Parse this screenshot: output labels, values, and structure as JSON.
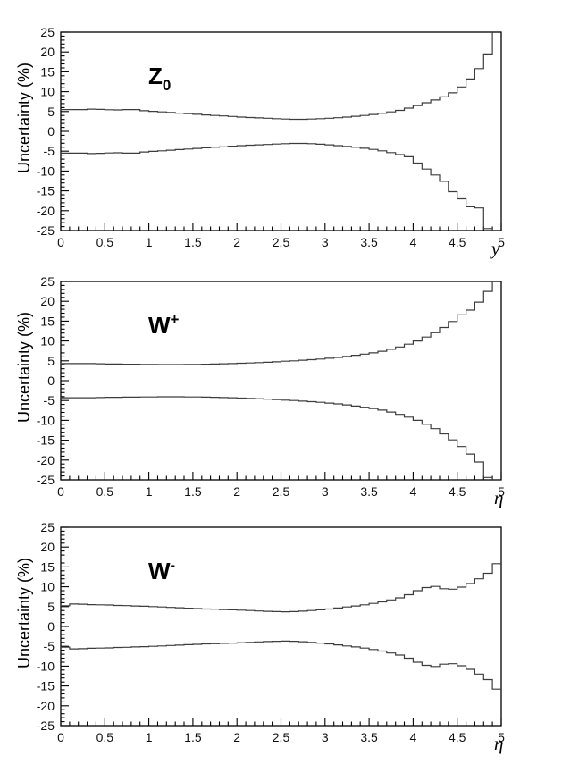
{
  "figure": {
    "background": "#ffffff",
    "curve_color": "#3c3c3c",
    "axis_color": "#000000",
    "text_color": "#000000"
  },
  "panels": [
    {
      "name": "Z0",
      "title_main": "Z",
      "title_script": "0",
      "script_type": "sub"
    },
    {
      "name": "W-plus",
      "title_main": "W",
      "title_script": "+",
      "script_type": "sup"
    },
    {
      "name": "W-minus",
      "title_main": "W",
      "title_script": "-",
      "script_type": "sup"
    }
  ],
  "chart_data": [
    {
      "type": "line",
      "style": "step-histogram",
      "title": "Z0",
      "xlabel": "y",
      "ylabel": "Uncertainty (%)",
      "xlim": [
        0,
        5
      ],
      "ylim": [
        -25,
        25
      ],
      "grid": false,
      "legend": "none",
      "bin_width": 0.1,
      "x_ticks": {
        "major_step": 0.5,
        "minor_step": 0.1,
        "values": [
          0,
          0.5,
          1,
          1.5,
          2,
          2.5,
          3,
          3.5,
          4,
          4.5,
          5
        ],
        "labels": [
          "0",
          "0.5",
          "1",
          "1.5",
          "2",
          "2.5",
          "3",
          "3.5",
          "4",
          "4.5",
          "5"
        ]
      },
      "y_ticks": {
        "major_step": 5,
        "minor_step": 1,
        "values": [
          25,
          20,
          15,
          10,
          5,
          0,
          -5,
          -10,
          -15,
          -20,
          -25
        ],
        "labels": [
          "25",
          "20",
          "15",
          "10",
          "5",
          "0",
          "-5",
          "-10",
          "-15",
          "-20",
          "-25"
        ]
      },
      "series": [
        {
          "name": "upper-uncertainty",
          "values": [
            5.5,
            5.5,
            5.5,
            5.6,
            5.55,
            5.45,
            5.4,
            5.5,
            5.5,
            5.2,
            5.05,
            4.9,
            4.75,
            4.6,
            4.45,
            4.3,
            4.15,
            4.0,
            3.9,
            3.75,
            3.6,
            3.5,
            3.4,
            3.3,
            3.2,
            3.1,
            3.05,
            3.05,
            3.1,
            3.2,
            3.3,
            3.45,
            3.6,
            3.8,
            4.0,
            4.25,
            4.55,
            4.9,
            5.3,
            5.85,
            6.5,
            7.2,
            7.9,
            8.7,
            9.7,
            11.2,
            13.2,
            15.8,
            19.5,
            25.5
          ]
        },
        {
          "name": "lower-uncertainty",
          "values": [
            -5.5,
            -5.5,
            -5.5,
            -5.6,
            -5.55,
            -5.45,
            -5.4,
            -5.5,
            -5.5,
            -5.2,
            -5.05,
            -4.9,
            -4.75,
            -4.6,
            -4.45,
            -4.3,
            -4.15,
            -4.0,
            -3.9,
            -3.75,
            -3.6,
            -3.5,
            -3.4,
            -3.3,
            -3.2,
            -3.1,
            -3.05,
            -3.05,
            -3.1,
            -3.25,
            -3.4,
            -3.6,
            -3.8,
            -4.0,
            -4.25,
            -4.55,
            -4.9,
            -5.35,
            -5.85,
            -6.4,
            -8.0,
            -9.5,
            -11.0,
            -12.6,
            -15.2,
            -17.0,
            -19.0,
            -19.3,
            -24.5,
            -27.0
          ]
        }
      ]
    },
    {
      "type": "line",
      "style": "step-histogram",
      "title": "W+",
      "xlabel": "η",
      "ylabel": "Uncertainty (%)",
      "xlim": [
        0,
        5
      ],
      "ylim": [
        -25,
        25
      ],
      "grid": false,
      "legend": "none",
      "bin_width": 0.1,
      "x_ticks": {
        "major_step": 0.5,
        "minor_step": 0.1,
        "values": [
          0,
          0.5,
          1,
          1.5,
          2,
          2.5,
          3,
          3.5,
          4,
          4.5,
          5
        ],
        "labels": [
          "0",
          "0.5",
          "1",
          "1.5",
          "2",
          "2.5",
          "3",
          "3.5",
          "4",
          "4.5",
          "5"
        ]
      },
      "y_ticks": {
        "major_step": 5,
        "minor_step": 1,
        "values": [
          25,
          20,
          15,
          10,
          5,
          0,
          -5,
          -10,
          -15,
          -20,
          -25
        ],
        "labels": [
          "25",
          "20",
          "15",
          "10",
          "5",
          "0",
          "-5",
          "-10",
          "-15",
          "-20",
          "-25"
        ]
      },
      "series": [
        {
          "name": "upper-uncertainty",
          "values": [
            4.3,
            4.3,
            4.3,
            4.3,
            4.25,
            4.2,
            4.2,
            4.15,
            4.15,
            4.1,
            4.1,
            4.05,
            4.05,
            4.05,
            4.1,
            4.1,
            4.15,
            4.2,
            4.25,
            4.3,
            4.4,
            4.45,
            4.55,
            4.65,
            4.75,
            4.9,
            5.0,
            5.15,
            5.3,
            5.45,
            5.65,
            5.85,
            6.1,
            6.4,
            6.7,
            7.0,
            7.4,
            7.9,
            8.5,
            9.2,
            10.0,
            11.0,
            12.1,
            13.4,
            14.9,
            16.6,
            17.8,
            19.8,
            22.5,
            25.4
          ]
        },
        {
          "name": "lower-uncertainty",
          "values": [
            -4.3,
            -4.3,
            -4.3,
            -4.3,
            -4.25,
            -4.2,
            -4.2,
            -4.15,
            -4.15,
            -4.1,
            -4.1,
            -4.05,
            -4.05,
            -4.05,
            -4.1,
            -4.1,
            -4.15,
            -4.2,
            -4.25,
            -4.3,
            -4.4,
            -4.45,
            -4.55,
            -4.65,
            -4.75,
            -4.9,
            -5.0,
            -5.15,
            -5.3,
            -5.45,
            -5.65,
            -5.85,
            -6.1,
            -6.4,
            -6.7,
            -7.0,
            -7.4,
            -7.9,
            -8.5,
            -9.2,
            -10.0,
            -11.0,
            -12.1,
            -13.4,
            -14.9,
            -16.6,
            -18.5,
            -20.5,
            -24.4,
            -26.5
          ]
        }
      ]
    },
    {
      "type": "line",
      "style": "step-histogram",
      "title": "W-",
      "xlabel": "η",
      "ylabel": "Uncertainty (%)",
      "xlim": [
        0,
        5
      ],
      "ylim": [
        -25,
        25
      ],
      "grid": false,
      "legend": "none",
      "bin_width": 0.1,
      "x_ticks": {
        "major_step": 0.5,
        "minor_step": 0.1,
        "values": [
          0,
          0.5,
          1,
          1.5,
          2,
          2.5,
          3,
          3.5,
          4,
          4.5,
          5
        ],
        "labels": [
          "0",
          "0.5",
          "1",
          "1.5",
          "2",
          "2.5",
          "3",
          "3.5",
          "4",
          "4.5",
          "5"
        ]
      },
      "y_ticks": {
        "major_step": 5,
        "minor_step": 1,
        "values": [
          25,
          20,
          15,
          10,
          5,
          0,
          -5,
          -10,
          -15,
          -20,
          -25
        ],
        "labels": [
          "25",
          "20",
          "15",
          "10",
          "5",
          "0",
          "-5",
          "-10",
          "-15",
          "-20",
          "-25"
        ]
      },
      "series": [
        {
          "name": "upper-uncertainty",
          "values": [
            5.2,
            5.65,
            5.6,
            5.5,
            5.45,
            5.4,
            5.3,
            5.25,
            5.15,
            5.1,
            5.0,
            4.9,
            4.8,
            4.7,
            4.6,
            4.5,
            4.4,
            4.35,
            4.25,
            4.2,
            4.1,
            4.0,
            3.9,
            3.8,
            3.75,
            3.7,
            3.75,
            3.85,
            4.0,
            4.2,
            4.4,
            4.65,
            4.9,
            5.15,
            5.45,
            5.8,
            6.2,
            6.7,
            7.2,
            8.0,
            9.0,
            9.8,
            10.1,
            9.5,
            9.4,
            9.9,
            10.8,
            12.0,
            13.4,
            15.8
          ]
        },
        {
          "name": "lower-uncertainty",
          "values": [
            -5.2,
            -5.65,
            -5.6,
            -5.5,
            -5.45,
            -5.4,
            -5.3,
            -5.25,
            -5.15,
            -5.1,
            -5.0,
            -4.9,
            -4.8,
            -4.7,
            -4.6,
            -4.5,
            -4.4,
            -4.35,
            -4.25,
            -4.2,
            -4.1,
            -4.0,
            -3.9,
            -3.8,
            -3.75,
            -3.7,
            -3.75,
            -3.85,
            -4.0,
            -4.2,
            -4.4,
            -4.65,
            -4.9,
            -5.15,
            -5.45,
            -5.8,
            -6.2,
            -6.7,
            -7.2,
            -8.0,
            -9.0,
            -9.8,
            -10.1,
            -9.5,
            -9.4,
            -9.9,
            -10.8,
            -12.0,
            -13.4,
            -15.8
          ]
        }
      ]
    }
  ]
}
